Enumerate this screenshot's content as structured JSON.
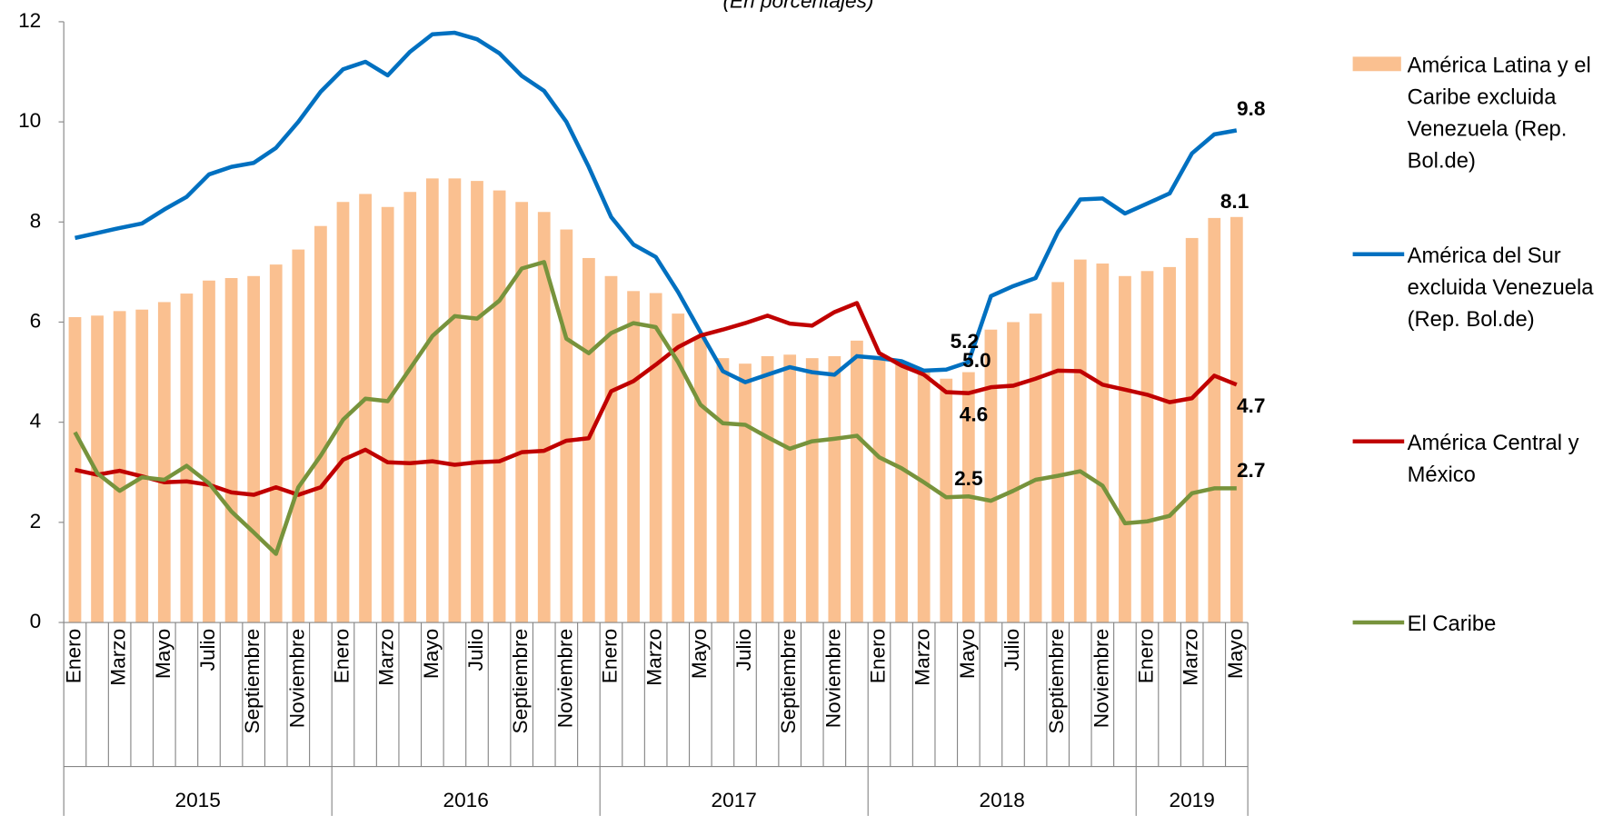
{
  "chart_data": {
    "type": "bar",
    "subtitle": "(En porcentajes)",
    "categories": [
      "Enero",
      null,
      "Marzo",
      null,
      "Mayo",
      null,
      "Julio",
      null,
      "Septiembre",
      null,
      "Noviembre",
      null,
      "Enero",
      null,
      "Marzo",
      null,
      "Mayo",
      null,
      "Julio",
      null,
      "Septiembre",
      null,
      "Noviembre",
      null,
      "Enero",
      null,
      "Marzo",
      null,
      "Mayo",
      null,
      "Julio",
      null,
      "Septiembre",
      null,
      "Noviembre",
      null,
      "Enero",
      null,
      "Marzo",
      null,
      "Mayo",
      null,
      "Julio",
      null,
      "Septiembre",
      null,
      "Noviembre",
      null,
      "Enero",
      null,
      "Marzo",
      null,
      "Mayo"
    ],
    "year_groups": [
      "2015",
      "2016",
      "2017",
      "2018",
      "2019"
    ],
    "ylim": [
      0,
      12
    ],
    "yticks": [
      0,
      2,
      4,
      6,
      8,
      10,
      12
    ],
    "series": [
      {
        "name": "América Latina y el Caribe excluida Venezuela (Rep. Bol.de)",
        "kind": "bar",
        "color": "#fac090",
        "label_color": "#000000",
        "values": [
          6.1,
          6.13,
          6.22,
          6.25,
          6.4,
          6.57,
          6.83,
          6.88,
          6.92,
          7.15,
          7.45,
          7.92,
          8.4,
          8.56,
          8.3,
          8.6,
          8.87,
          8.87,
          8.82,
          8.63,
          8.4,
          8.2,
          7.85,
          7.28,
          6.92,
          6.62,
          6.58,
          6.17,
          5.7,
          5.28,
          5.17,
          5.32,
          5.35,
          5.28,
          5.32,
          5.63,
          5.3,
          5.18,
          5.05,
          4.87,
          5.0,
          5.85,
          6.0,
          6.17,
          6.8,
          7.25,
          7.17,
          6.92,
          7.02,
          7.1,
          7.68,
          8.08,
          8.1
        ],
        "value_labels": [
          null,
          null,
          null,
          null,
          null,
          null,
          null,
          null,
          null,
          null,
          null,
          null,
          null,
          null,
          null,
          null,
          null,
          null,
          null,
          null,
          null,
          null,
          null,
          null,
          null,
          null,
          null,
          null,
          null,
          null,
          null,
          null,
          null,
          null,
          null,
          null,
          null,
          null,
          null,
          null,
          "5.0",
          null,
          null,
          null,
          null,
          null,
          null,
          null,
          null,
          null,
          null,
          null,
          "8.1"
        ]
      },
      {
        "name": "América del Sur excluida Venezuela (Rep. Bol.de)",
        "kind": "line",
        "color": "#0070c0",
        "label_color": "#1f1fbf",
        "values": [
          7.68,
          7.78,
          7.88,
          7.97,
          8.25,
          8.5,
          8.95,
          9.1,
          9.18,
          9.48,
          10.0,
          10.6,
          11.05,
          11.2,
          10.93,
          11.4,
          11.75,
          11.78,
          11.65,
          11.37,
          10.92,
          10.62,
          10.0,
          9.1,
          8.1,
          7.55,
          7.3,
          6.6,
          5.8,
          5.02,
          4.8,
          4.95,
          5.1,
          5.0,
          4.95,
          5.32,
          5.28,
          5.22,
          5.03,
          5.05,
          5.2,
          6.52,
          6.72,
          6.88,
          7.8,
          8.45,
          8.47,
          8.17,
          8.37,
          8.57,
          9.37,
          9.75,
          9.83
        ],
        "value_labels": [
          null,
          null,
          null,
          null,
          null,
          null,
          null,
          null,
          null,
          null,
          null,
          null,
          null,
          null,
          null,
          null,
          null,
          null,
          null,
          null,
          null,
          null,
          null,
          null,
          null,
          null,
          null,
          null,
          null,
          null,
          null,
          null,
          null,
          null,
          null,
          null,
          null,
          null,
          null,
          null,
          "5.2",
          null,
          null,
          null,
          null,
          null,
          null,
          null,
          null,
          null,
          null,
          null,
          "9.8"
        ]
      },
      {
        "name": "América Central y México",
        "kind": "line",
        "color": "#c00000",
        "label_color": "#c00000",
        "values": [
          3.05,
          2.95,
          3.03,
          2.92,
          2.8,
          2.82,
          2.75,
          2.6,
          2.55,
          2.7,
          2.55,
          2.7,
          3.25,
          3.45,
          3.2,
          3.18,
          3.22,
          3.15,
          3.2,
          3.22,
          3.4,
          3.43,
          3.63,
          3.68,
          4.62,
          4.82,
          5.15,
          5.5,
          5.73,
          5.85,
          5.98,
          6.13,
          5.97,
          5.93,
          6.2,
          6.38,
          5.38,
          5.13,
          4.95,
          4.6,
          4.58,
          4.7,
          4.73,
          4.87,
          5.03,
          5.02,
          4.75,
          4.65,
          4.55,
          4.4,
          4.48,
          4.93,
          4.75
        ],
        "value_labels": [
          null,
          null,
          null,
          null,
          null,
          null,
          null,
          null,
          null,
          null,
          null,
          null,
          null,
          null,
          null,
          null,
          null,
          null,
          null,
          null,
          null,
          null,
          null,
          null,
          null,
          null,
          null,
          null,
          null,
          null,
          null,
          null,
          null,
          null,
          null,
          null,
          null,
          null,
          null,
          null,
          "4.6",
          null,
          null,
          null,
          null,
          null,
          null,
          null,
          null,
          null,
          null,
          null,
          "4.7"
        ]
      },
      {
        "name": "El Caribe",
        "kind": "line",
        "color": "#77933c",
        "label_color": "#2e7d3a",
        "values": [
          3.8,
          2.98,
          2.63,
          2.9,
          2.85,
          3.13,
          2.78,
          2.22,
          1.8,
          1.37,
          2.7,
          3.33,
          4.05,
          4.47,
          4.42,
          5.07,
          5.72,
          6.12,
          6.07,
          6.43,
          7.07,
          7.2,
          5.67,
          5.38,
          5.78,
          5.98,
          5.9,
          5.2,
          4.35,
          3.98,
          3.95,
          3.7,
          3.47,
          3.62,
          3.67,
          3.73,
          3.3,
          3.08,
          2.8,
          2.5,
          2.52,
          2.43,
          2.63,
          2.85,
          2.93,
          3.02,
          2.73,
          1.98,
          2.02,
          2.13,
          2.58,
          2.68,
          2.68
        ],
        "value_labels": [
          null,
          null,
          null,
          null,
          null,
          null,
          null,
          null,
          null,
          null,
          null,
          null,
          null,
          null,
          null,
          null,
          null,
          null,
          null,
          null,
          null,
          null,
          null,
          null,
          null,
          null,
          null,
          null,
          null,
          null,
          null,
          null,
          null,
          null,
          null,
          null,
          null,
          null,
          null,
          null,
          "2.5",
          null,
          null,
          null,
          null,
          null,
          null,
          null,
          null,
          null,
          null,
          null,
          "2.7"
        ]
      }
    ]
  }
}
